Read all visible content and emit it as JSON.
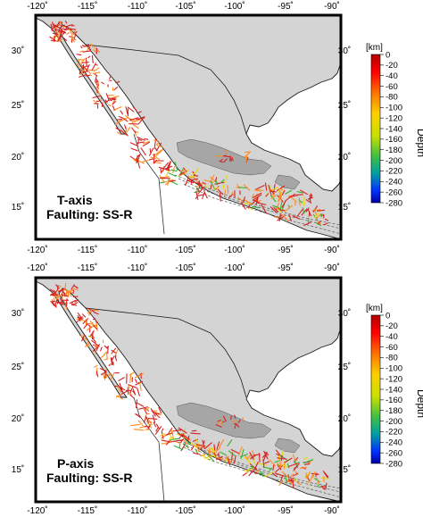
{
  "colors": {
    "land": "#d4d4d4",
    "highland": "#a6a6a6",
    "ocean": "#ffffff",
    "coast": "#1a1a1a",
    "frame": "#000000",
    "axis_fill": "#ffffff",
    "axis_red": "#d62020",
    "axis_orange": "#ff8a1c",
    "axis_yellow": "#e8d800",
    "axis_green": "#33b233",
    "trench_dash": "#5a5a5a"
  },
  "panels": [
    {
      "id": "t-axis",
      "lon_ticks": [
        "-120˚",
        "-115˚",
        "-110˚",
        "-105˚",
        "-100˚",
        "-95˚",
        "-90˚"
      ],
      "lat_ticks": [
        "30˚",
        "25˚",
        "20˚",
        "15˚"
      ],
      "label_line1": "T-axis",
      "label_line2": "Faulting: SS-R"
    },
    {
      "id": "p-axis",
      "lon_ticks": [
        "-120˚",
        "-115˚",
        "-110˚",
        "-105˚",
        "-100˚",
        "-95˚",
        "-90˚"
      ],
      "lat_ticks": [
        "30˚",
        "25˚",
        "20˚",
        "15˚"
      ],
      "label_line1": "P-axis",
      "label_line2": "Faulting: SS-R"
    }
  ],
  "colorbar": {
    "unit": "[km]",
    "title": "Depth",
    "ticks": [
      "0",
      "-20",
      "-40",
      "-60",
      "-80",
      "-100",
      "-120",
      "-140",
      "-160",
      "-180",
      "-200",
      "-220",
      "-240",
      "-260",
      "-280"
    ],
    "range_km": [
      0,
      -280
    ],
    "colormap": [
      "#b30000",
      "#ff0000",
      "#ff7a00",
      "#ffd000",
      "#c8e000",
      "#44c040",
      "#00a0a0",
      "#0030ff",
      "#0000a0"
    ]
  }
}
